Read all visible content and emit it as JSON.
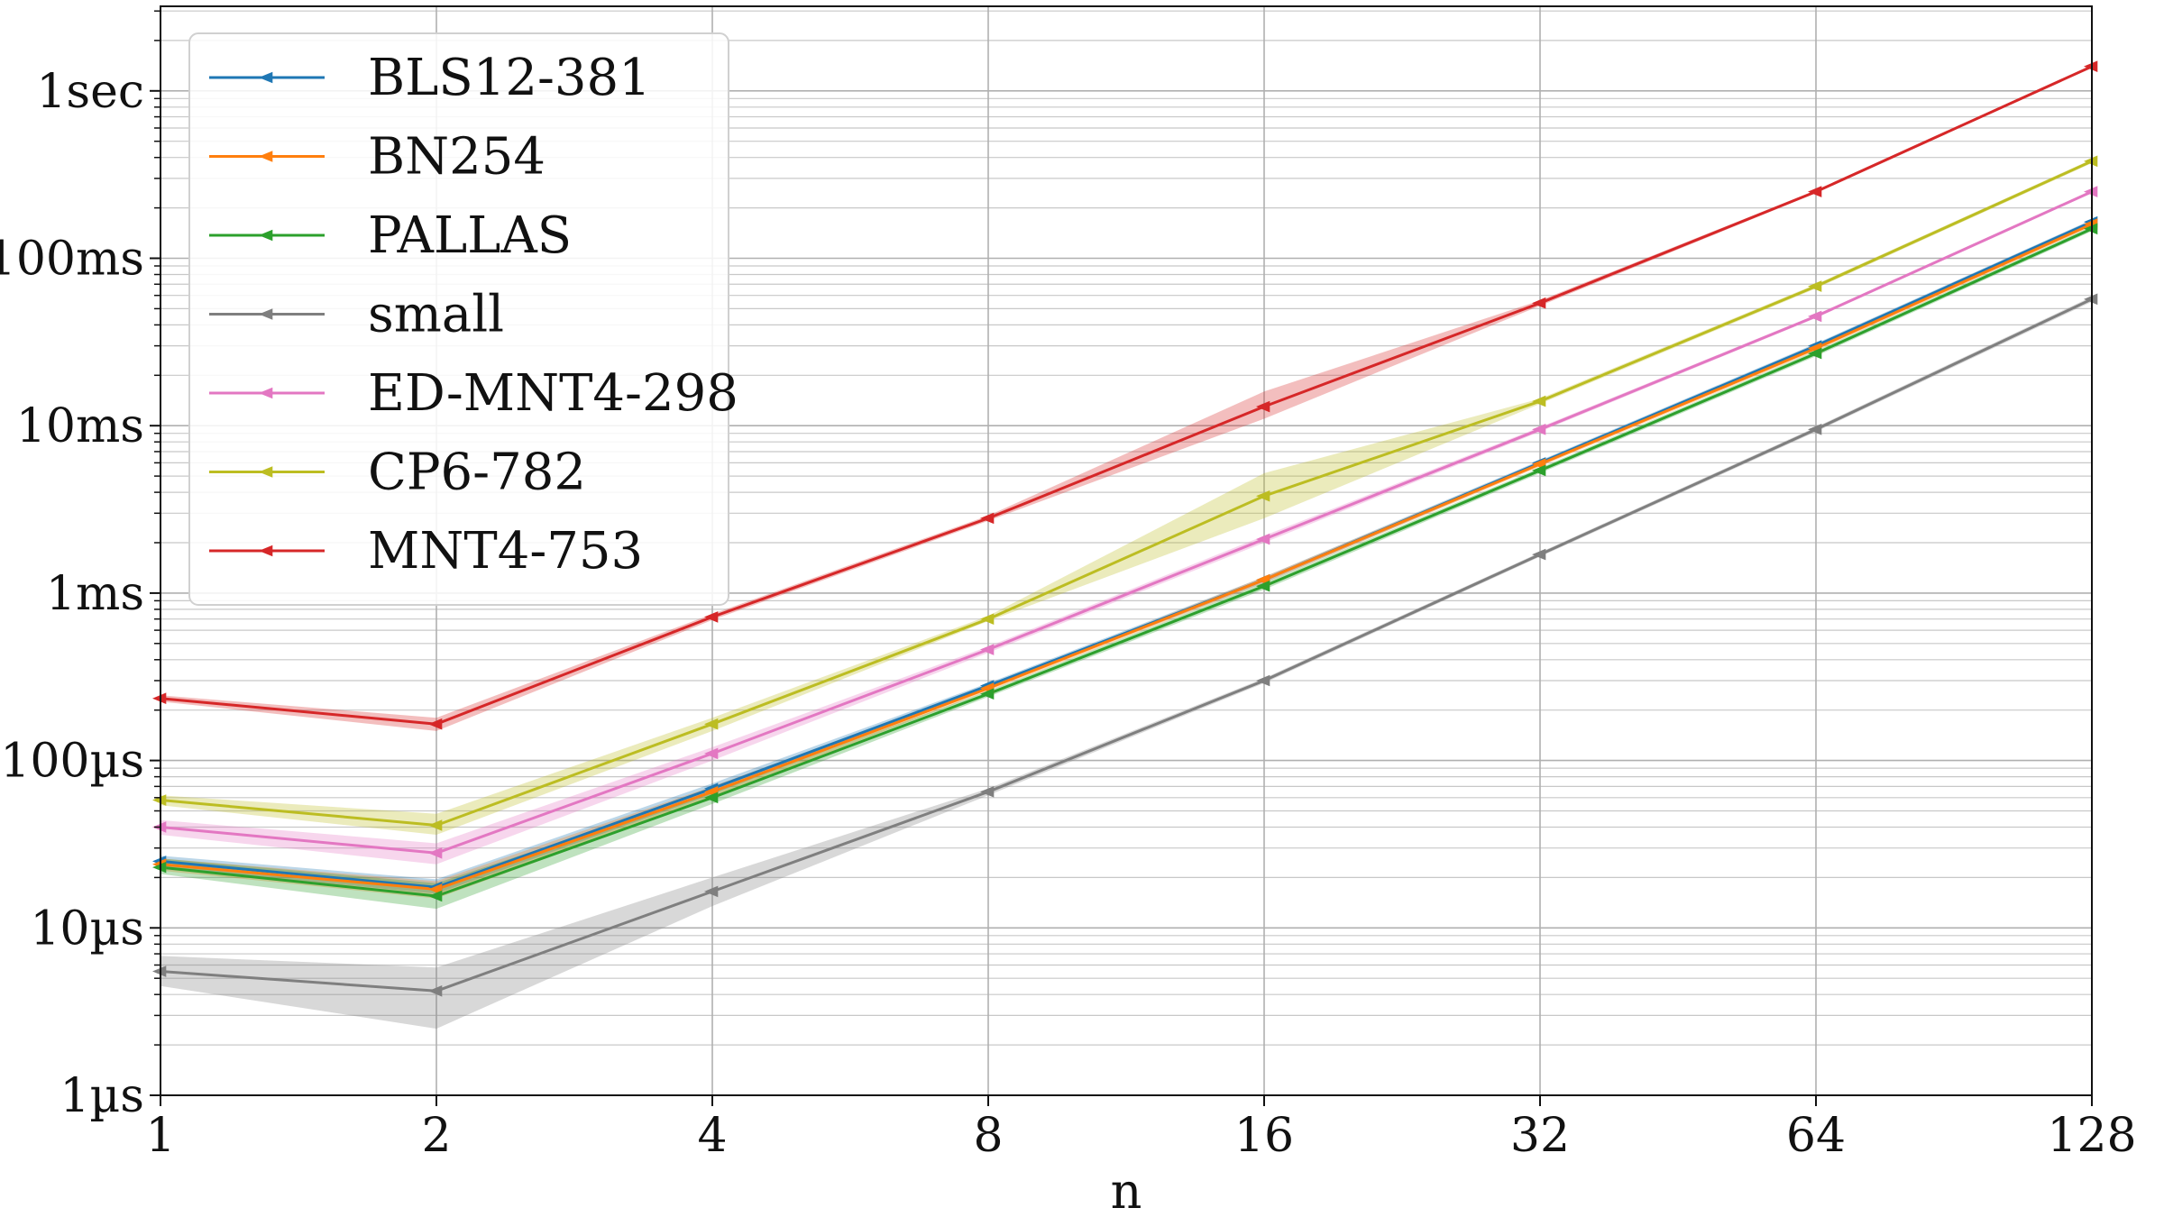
{
  "chart_data": {
    "type": "line",
    "xlabel": "n",
    "ylabel": "",
    "x_scale": "log2",
    "y_scale": "log10",
    "x": [
      1,
      2,
      4,
      8,
      16,
      32,
      64,
      128
    ],
    "x_tick_labels": [
      "1",
      "2",
      "4",
      "8",
      "16",
      "32",
      "64",
      "128"
    ],
    "xlim": [
      1,
      128
    ],
    "y_ticks": [
      1e-06,
      1e-05,
      0.0001,
      0.001,
      0.01,
      0.1,
      1
    ],
    "y_tick_labels": [
      "1µs",
      "10µs",
      "100µs",
      "1ms",
      "10ms",
      "100ms",
      "1sec"
    ],
    "ylim": [
      1e-06,
      3.2
    ],
    "y_unit": "seconds",
    "grid": true,
    "legend_position": "top-left",
    "marker": "tri-left",
    "series": [
      {
        "name": "BLS12-381",
        "color": "#1f77b4",
        "values": [
          2.5e-05,
          1.75e-05,
          6.8e-05,
          0.00028,
          0.0012,
          0.006,
          0.03,
          0.165
        ],
        "band_low": [
          2.3e-05,
          1.6e-05,
          6.3e-05,
          0.00027,
          0.00115,
          0.0058,
          0.029,
          0.16
        ],
        "band_high": [
          2.7e-05,
          1.95e-05,
          7.3e-05,
          0.00029,
          0.00125,
          0.0062,
          0.031,
          0.17
        ]
      },
      {
        "name": "BN254",
        "color": "#ff7f0e",
        "values": [
          2.4e-05,
          1.7e-05,
          6.5e-05,
          0.00027,
          0.0012,
          0.0059,
          0.029,
          0.16
        ],
        "band_low": [
          2.2e-05,
          1.5e-05,
          6e-05,
          0.00026,
          0.00115,
          0.0057,
          0.028,
          0.155
        ],
        "band_high": [
          2.6e-05,
          1.9e-05,
          7e-05,
          0.00028,
          0.00125,
          0.0061,
          0.03,
          0.165
        ]
      },
      {
        "name": "PALLAS",
        "color": "#2ca02c",
        "values": [
          2.3e-05,
          1.55e-05,
          6e-05,
          0.00025,
          0.0011,
          0.0054,
          0.027,
          0.15
        ],
        "band_low": [
          2.1e-05,
          1.3e-05,
          5.5e-05,
          0.00024,
          0.00105,
          0.0052,
          0.026,
          0.145
        ],
        "band_high": [
          2.6e-05,
          1.85e-05,
          6.5e-05,
          0.00026,
          0.00115,
          0.0056,
          0.028,
          0.155
        ]
      },
      {
        "name": "small",
        "color": "#7f7f7f",
        "values": [
          5.5e-06,
          4.2e-06,
          1.65e-05,
          6.5e-05,
          0.0003,
          0.0017,
          0.0095,
          0.057
        ],
        "band_low": [
          4.5e-06,
          2.5e-06,
          1.35e-05,
          6.2e-05,
          0.00029,
          0.00165,
          0.0092,
          0.055
        ],
        "band_high": [
          6.8e-06,
          5.8e-06,
          2e-05,
          6.8e-05,
          0.00031,
          0.00175,
          0.0098,
          0.059
        ]
      },
      {
        "name": "ED-MNT4-298",
        "color": "#e377c2",
        "values": [
          4e-05,
          2.8e-05,
          0.00011,
          0.00046,
          0.0021,
          0.0095,
          0.045,
          0.25
        ],
        "band_low": [
          3.6e-05,
          2.4e-05,
          0.0001,
          0.00044,
          0.002,
          0.0092,
          0.044,
          0.245
        ],
        "band_high": [
          4.4e-05,
          3.2e-05,
          0.00012,
          0.00048,
          0.0022,
          0.0098,
          0.046,
          0.255
        ]
      },
      {
        "name": "CP6-782",
        "color": "#bcbd22",
        "values": [
          5.8e-05,
          4.1e-05,
          0.000165,
          0.0007,
          0.0038,
          0.014,
          0.068,
          0.38
        ],
        "band_low": [
          5.4e-05,
          3.6e-05,
          0.00015,
          0.00068,
          0.0028,
          0.0135,
          0.066,
          0.37
        ],
        "band_high": [
          6.2e-05,
          4.8e-05,
          0.00018,
          0.00073,
          0.0052,
          0.0145,
          0.07,
          0.39
        ]
      },
      {
        "name": "MNT4-753",
        "color": "#d62728",
        "values": [
          0.000235,
          0.000165,
          0.00072,
          0.0028,
          0.013,
          0.054,
          0.25,
          1.4
        ],
        "band_low": [
          0.000225,
          0.00015,
          0.00069,
          0.0027,
          0.011,
          0.052,
          0.245,
          1.38
        ],
        "band_high": [
          0.000245,
          0.00018,
          0.00075,
          0.0029,
          0.016,
          0.056,
          0.255,
          1.42
        ]
      }
    ]
  }
}
